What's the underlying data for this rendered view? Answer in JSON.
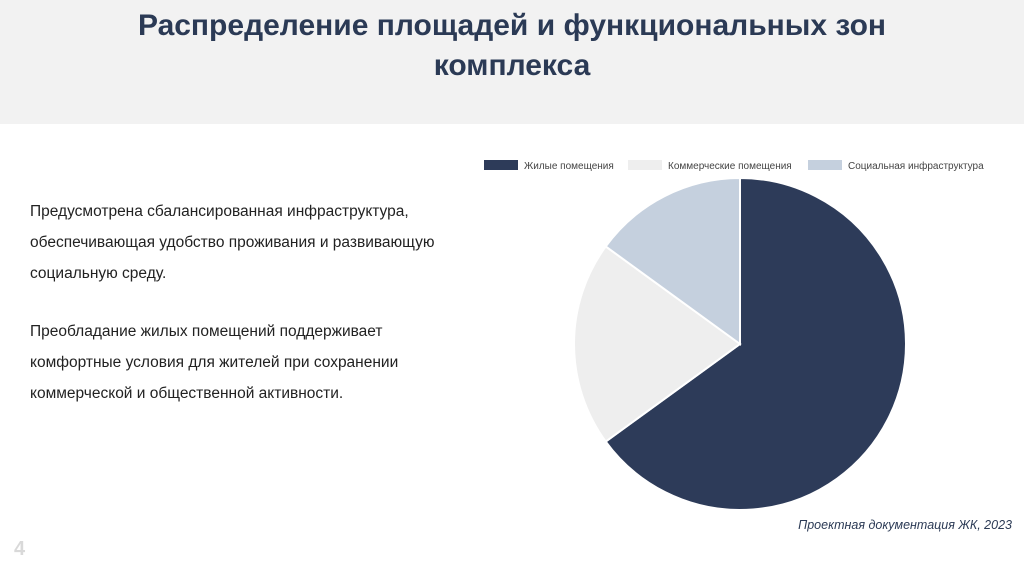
{
  "slide": {
    "title": "Распределение площадей и функциональных зон комплекса",
    "paragraphs": [
      "Предусмотрена сбалансированная инфраструктура, обеспечивающая удобство проживания и развивающую социальную среду.",
      "Преобладание жилых помещений поддерживает комфортные условия для жителей при сохранении коммерческой и общественной активности."
    ],
    "source": "Проектная документация ЖК, 2023",
    "page_number": "4"
  },
  "chart_data": {
    "type": "pie",
    "title": "",
    "start_angle": "top, clockwise",
    "legend_position": "top",
    "slices": [
      {
        "label": "Жилые помещения",
        "value": 65,
        "color": "#2d3b59"
      },
      {
        "label": "Коммерческие помещения",
        "value": 20,
        "color": "#eeeeee"
      },
      {
        "label": "Социальная инфраструктура",
        "value": 15,
        "color": "#c5d0de"
      }
    ]
  }
}
